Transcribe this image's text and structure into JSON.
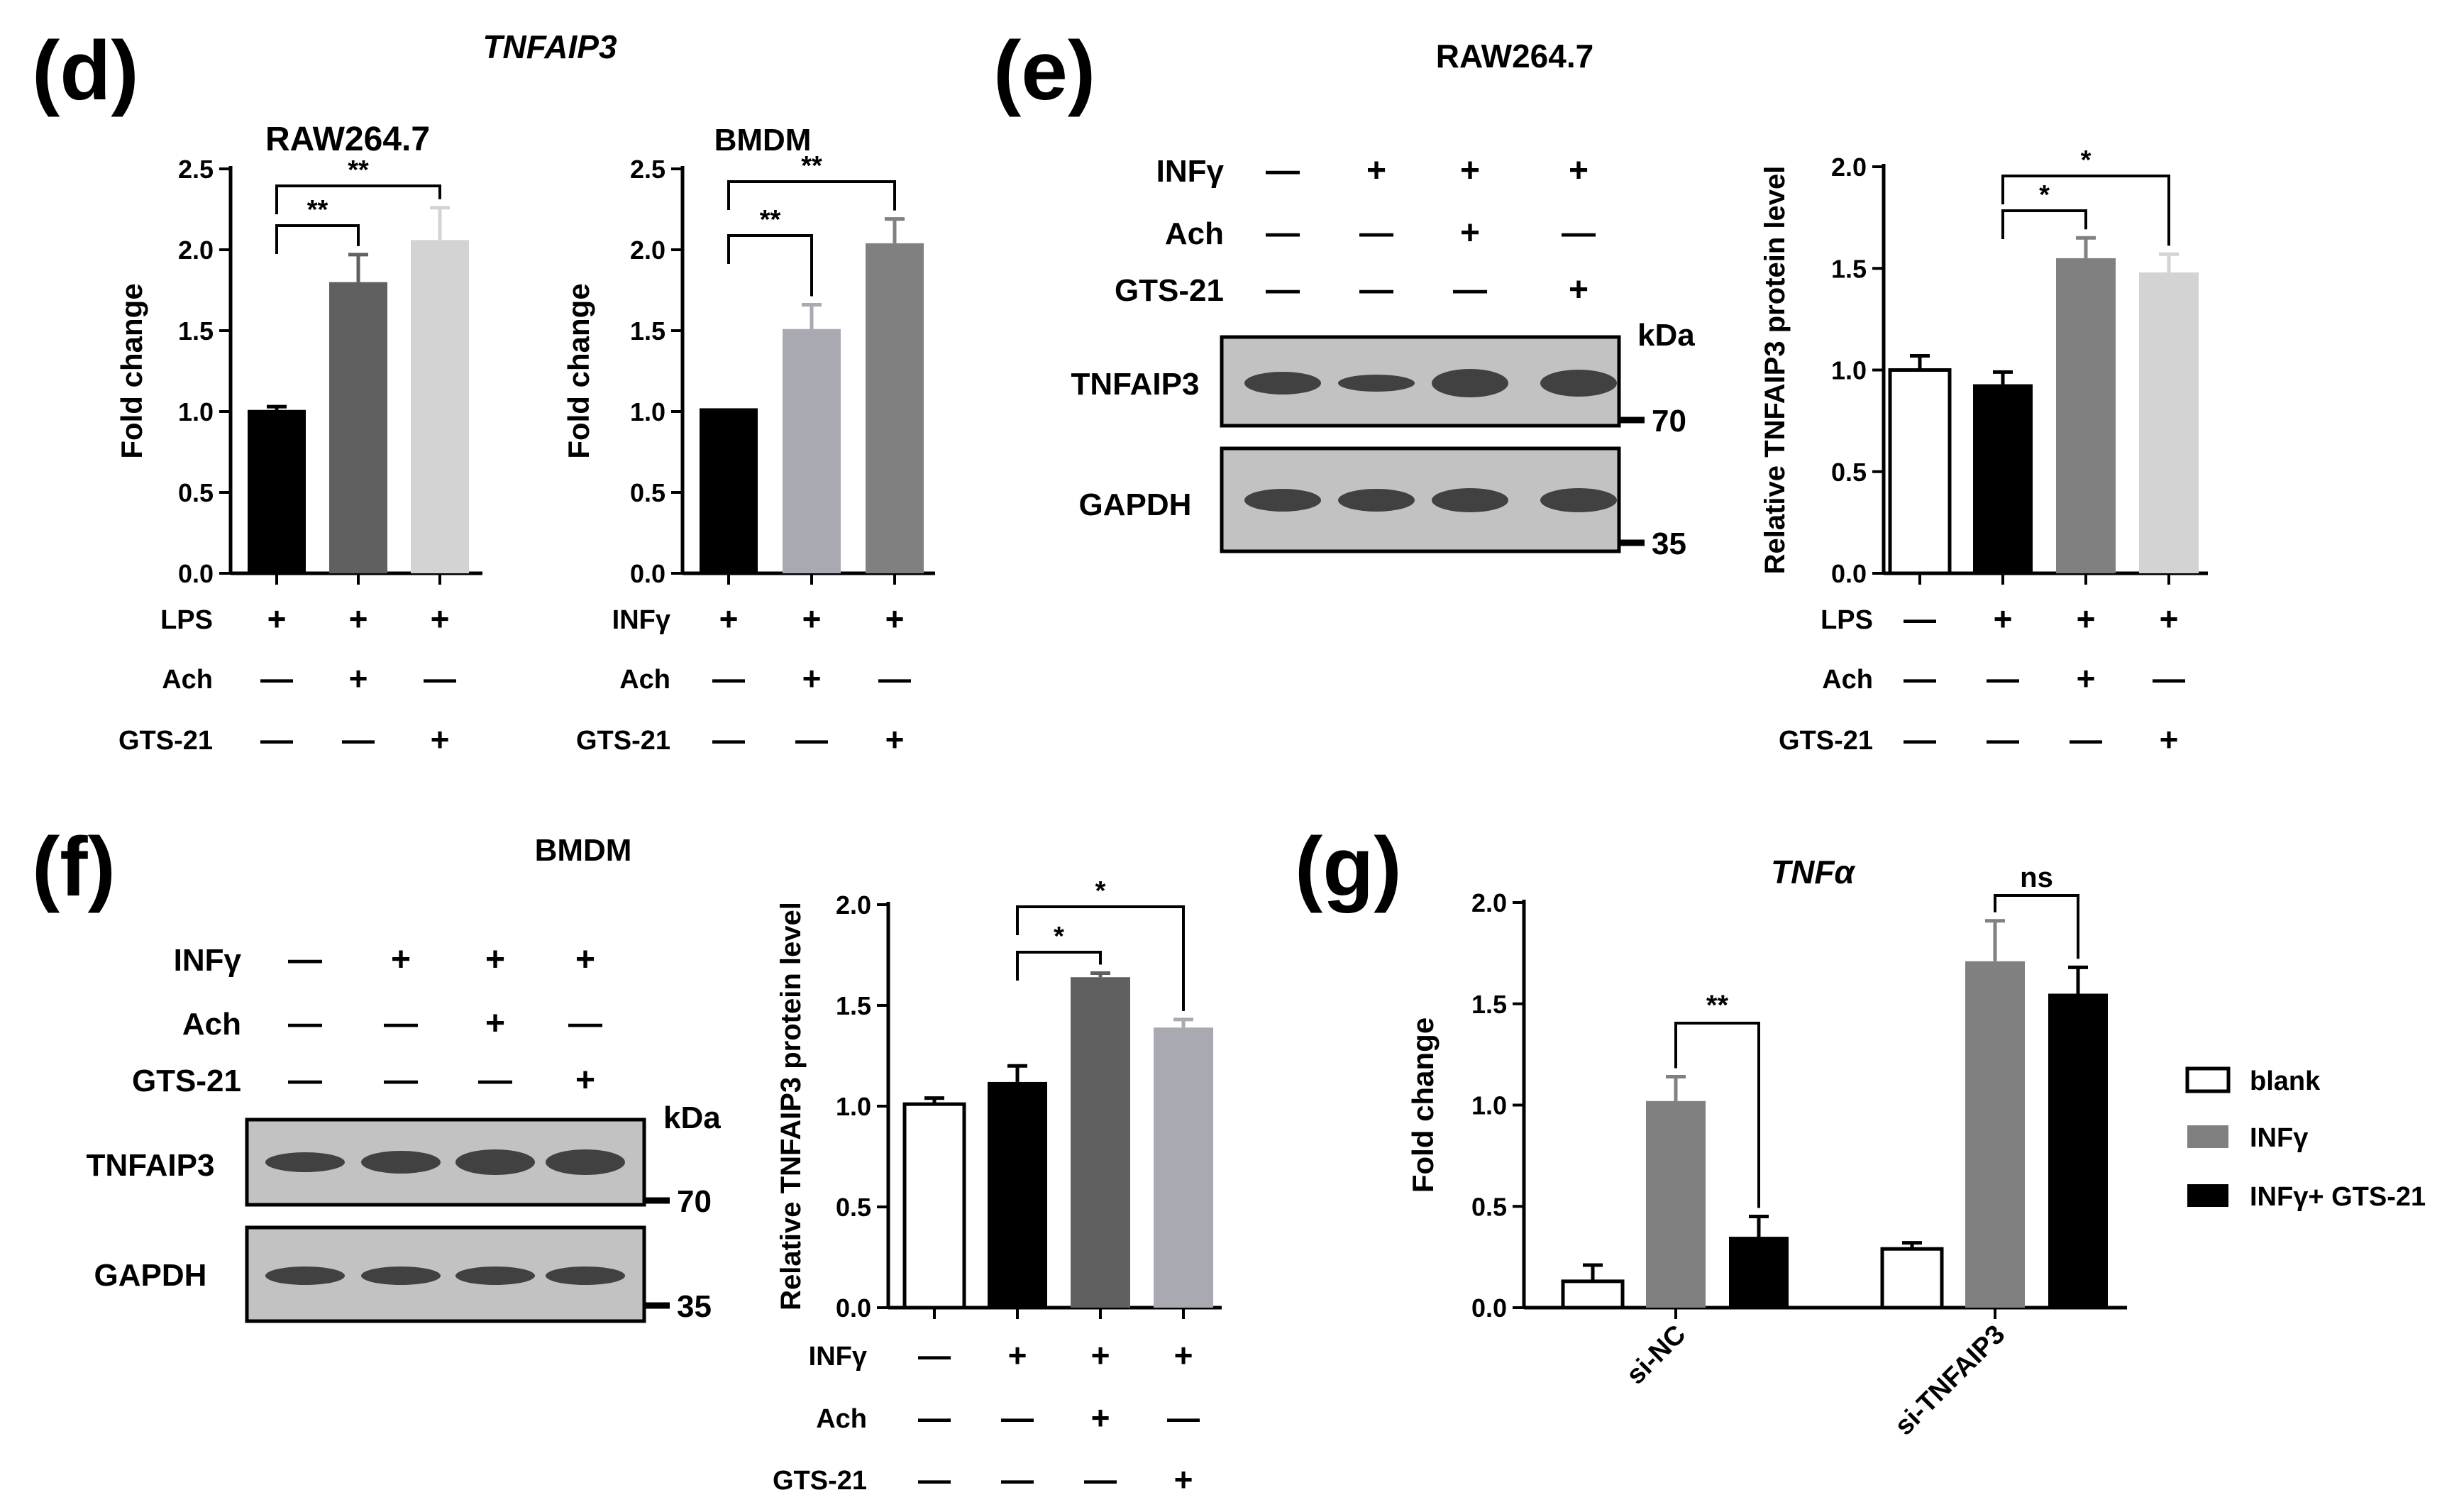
{
  "colors": {
    "black": "#000000",
    "dark_gray": "#606060",
    "mid_gray": "#808080",
    "light_gray": "#d3d3d3",
    "lilac_gray": "#a9a9b1",
    "white": "#ffffff",
    "blot_band": "#2a2a2a",
    "blot_bg": "#c2c2c2"
  },
  "panels": {
    "d": {
      "label": "(d)",
      "gene_title": "TNFAIP3"
    },
    "e": {
      "label": "(e)",
      "cell_title": "RAW264.7"
    },
    "f": {
      "label": "(f)",
      "cell_title": "BMDM"
    },
    "g": {
      "label": "(g)",
      "gene_title": "TNFα"
    }
  },
  "blots": {
    "e": {
      "treatments": [
        {
          "name": "INFγ",
          "signs": [
            "—",
            "+",
            "+",
            "+"
          ]
        },
        {
          "name": "Ach",
          "signs": [
            "—",
            "—",
            "+",
            "—"
          ]
        },
        {
          "name": "GTS-21",
          "signs": [
            "—",
            "—",
            "—",
            "+"
          ]
        }
      ],
      "proteins": [
        "TNFAIP3",
        "GAPDH"
      ],
      "kda_label": "kDa",
      "markers": [
        "70",
        "35"
      ]
    },
    "f": {
      "treatments": [
        {
          "name": "INFγ",
          "signs": [
            "—",
            "+",
            "+",
            "+"
          ]
        },
        {
          "name": "Ach",
          "signs": [
            "—",
            "—",
            "+",
            "—"
          ]
        },
        {
          "name": "GTS-21",
          "signs": [
            "—",
            "—",
            "—",
            "+"
          ]
        }
      ],
      "proteins": [
        "TNFAIP3",
        "GAPDH"
      ],
      "kda_label": "kDa",
      "markers": [
        "70",
        "35"
      ]
    }
  },
  "chart_data": [
    {
      "id": "d1",
      "type": "bar",
      "title": "RAW264.7",
      "xlabel": "",
      "ylabel": "Fold change",
      "ylim": [
        0,
        2.5
      ],
      "yticks": [
        "0.0",
        "0.5",
        "1.0",
        "1.5",
        "2.0",
        "2.5"
      ],
      "values": [
        1.01,
        1.8,
        2.06
      ],
      "errors": [
        0.02,
        0.17,
        0.2
      ],
      "fills": [
        "#000000",
        "#606060",
        "#d3d3d3"
      ],
      "treatments": [
        {
          "name": "LPS",
          "signs": [
            "+",
            "+",
            "+"
          ]
        },
        {
          "name": "Ach",
          "signs": [
            "—",
            "+",
            "—"
          ]
        },
        {
          "name": "GTS-21",
          "signs": [
            "—",
            "—",
            "+"
          ]
        }
      ],
      "significance": [
        {
          "from": 0,
          "to": 1,
          "label": "**"
        },
        {
          "from": 0,
          "to": 2,
          "label": "**"
        }
      ]
    },
    {
      "id": "d2",
      "type": "bar",
      "title": "BMDM",
      "xlabel": "",
      "ylabel": "Fold change",
      "ylim": [
        0,
        2.5
      ],
      "yticks": [
        "0.0",
        "0.5",
        "1.0",
        "1.5",
        "2.0",
        "2.5"
      ],
      "values": [
        1.02,
        1.51,
        2.04
      ],
      "errors": [
        0.0,
        0.15,
        0.15
      ],
      "fills": [
        "#000000",
        "#a9a9b1",
        "#808080"
      ],
      "treatments": [
        {
          "name": "INFγ",
          "signs": [
            "+",
            "+",
            "+"
          ]
        },
        {
          "name": "Ach",
          "signs": [
            "—",
            "+",
            "—"
          ]
        },
        {
          "name": "GTS-21",
          "signs": [
            "—",
            "—",
            "+"
          ]
        }
      ],
      "significance": [
        {
          "from": 0,
          "to": 1,
          "label": "**"
        },
        {
          "from": 0,
          "to": 2,
          "label": "**"
        }
      ]
    },
    {
      "id": "e",
      "type": "bar",
      "title": "",
      "xlabel": "",
      "ylabel": "Relative TNFAIP3 protein level",
      "ylim": [
        0,
        2.0
      ],
      "yticks": [
        "0.0",
        "0.5",
        "1.0",
        "1.5",
        "2.0"
      ],
      "values": [
        1.0,
        0.93,
        1.55,
        1.48
      ],
      "errors": [
        0.07,
        0.06,
        0.1,
        0.09
      ],
      "fills": [
        "#ffffff",
        "#000000",
        "#808080",
        "#d3d3d3"
      ],
      "treatments": [
        {
          "name": "LPS",
          "signs": [
            "—",
            "+",
            "+",
            "+"
          ]
        },
        {
          "name": "Ach",
          "signs": [
            "—",
            "—",
            "+",
            "—"
          ]
        },
        {
          "name": "GTS-21",
          "signs": [
            "—",
            "—",
            "—",
            "+"
          ]
        }
      ],
      "significance": [
        {
          "from": 1,
          "to": 2,
          "label": "*"
        },
        {
          "from": 1,
          "to": 3,
          "label": "*"
        }
      ]
    },
    {
      "id": "f",
      "type": "bar",
      "title": "",
      "xlabel": "",
      "ylabel": "Relative TNFAIP3 protein level",
      "ylim": [
        0,
        2.0
      ],
      "yticks": [
        "0.0",
        "0.5",
        "1.0",
        "1.5",
        "2.0"
      ],
      "values": [
        1.01,
        1.12,
        1.64,
        1.39
      ],
      "errors": [
        0.03,
        0.08,
        0.02,
        0.04
      ],
      "fills": [
        "#ffffff",
        "#000000",
        "#606060",
        "#a9a9b1"
      ],
      "treatments": [
        {
          "name": "INFγ",
          "signs": [
            "—",
            "+",
            "+",
            "+"
          ]
        },
        {
          "name": "Ach",
          "signs": [
            "—",
            "—",
            "+",
            "—"
          ]
        },
        {
          "name": "GTS-21",
          "signs": [
            "—",
            "—",
            "—",
            "+"
          ]
        }
      ],
      "significance": [
        {
          "from": 1,
          "to": 2,
          "label": "*"
        },
        {
          "from": 1,
          "to": 3,
          "label": "*"
        }
      ]
    },
    {
      "id": "g",
      "type": "bar",
      "title": "",
      "xlabel": "",
      "ylabel": "Fold change",
      "ylim": [
        0,
        2.0
      ],
      "yticks": [
        "0.0",
        "0.5",
        "1.0",
        "1.5",
        "2.0"
      ],
      "categories": [
        "si-NC",
        "si-TNFAIP3"
      ],
      "series": [
        {
          "name": "blank",
          "values": [
            0.13,
            0.29
          ],
          "errors": [
            0.08,
            0.03
          ],
          "fill": "#ffffff"
        },
        {
          "name": "INFγ",
          "values": [
            1.02,
            1.71
          ],
          "errors": [
            0.12,
            0.2
          ],
          "fill": "#808080"
        },
        {
          "name": "INFγ+ GTS-21",
          "values": [
            0.35,
            1.55
          ],
          "errors": [
            0.1,
            0.13
          ],
          "fill": "#000000"
        }
      ],
      "significance": [
        {
          "category": 0,
          "from_series": 1,
          "to_series": 2,
          "label": "**"
        },
        {
          "category": 1,
          "from_series": 1,
          "to_series": 2,
          "label": "ns"
        }
      ],
      "legend_position": "right"
    }
  ]
}
